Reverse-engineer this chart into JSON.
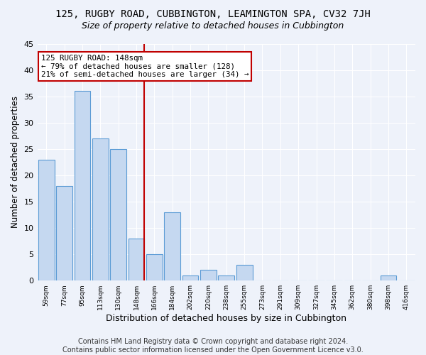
{
  "title1": "125, RUGBY ROAD, CUBBINGTON, LEAMINGTON SPA, CV32 7JH",
  "title2": "Size of property relative to detached houses in Cubbington",
  "xlabel": "Distribution of detached houses by size in Cubbington",
  "ylabel": "Number of detached properties",
  "categories": [
    "59sqm",
    "77sqm",
    "95sqm",
    "113sqm",
    "130sqm",
    "148sqm",
    "166sqm",
    "184sqm",
    "202sqm",
    "220sqm",
    "238sqm",
    "255sqm",
    "273sqm",
    "291sqm",
    "309sqm",
    "327sqm",
    "345sqm",
    "362sqm",
    "380sqm",
    "398sqm",
    "416sqm"
  ],
  "values": [
    23,
    18,
    36,
    27,
    25,
    8,
    5,
    13,
    1,
    2,
    1,
    3,
    0,
    0,
    0,
    0,
    0,
    0,
    0,
    1,
    0
  ],
  "bar_color": "#c5d8f0",
  "bar_edge_color": "#5b9bd5",
  "vline_x_index": 5,
  "vline_color": "#c00000",
  "annotation_line1": "125 RUGBY ROAD: 148sqm",
  "annotation_line2": "← 79% of detached houses are smaller (128)",
  "annotation_line3": "21% of semi-detached houses are larger (34) →",
  "annotation_box_color": "#ffffff",
  "annotation_box_edge": "#c00000",
  "ylim": [
    0,
    45
  ],
  "yticks": [
    0,
    5,
    10,
    15,
    20,
    25,
    30,
    35,
    40,
    45
  ],
  "footnote": "Contains HM Land Registry data © Crown copyright and database right 2024.\nContains public sector information licensed under the Open Government Licence v3.0.",
  "bg_color": "#eef2fa",
  "plot_bg_color": "#eef2fa",
  "title1_fontsize": 10,
  "title2_fontsize": 9,
  "xlabel_fontsize": 9,
  "ylabel_fontsize": 8.5,
  "footnote_fontsize": 7
}
